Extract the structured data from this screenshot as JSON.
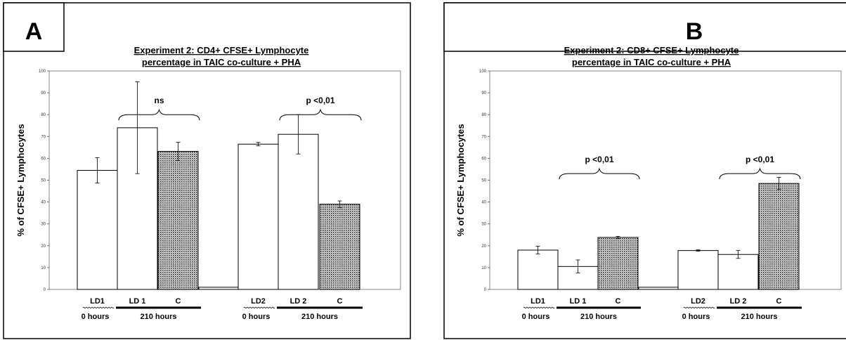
{
  "chart_data": [
    {
      "type": "bar",
      "panel_label": "A",
      "title_lines": [
        "Experiment 2: CD4+ CFSE+ Lymphocyte",
        "percentage in TAIC co-culture + PHA"
      ],
      "ylabel": "% of CFSE+ Lymphocytes",
      "ylim": [
        0,
        100
      ],
      "yticks": [
        0,
        10,
        20,
        30,
        40,
        50,
        60,
        70,
        80,
        90,
        100
      ],
      "ytick_labels": [
        "0",
        "10",
        "20",
        "30",
        "40",
        "50",
        "60",
        "70",
        "80",
        "90",
        "100"
      ],
      "bars": [
        {
          "label": "LD1",
          "value": 54.5,
          "error": 5.8,
          "fill": "white"
        },
        {
          "label": "LD 1",
          "value": 74,
          "error": 21,
          "fill": "white"
        },
        {
          "label": "C",
          "value": 63.2,
          "error": 4.2,
          "fill": "dotted"
        },
        {
          "label": "",
          "value": 1,
          "error": 0,
          "fill": "white"
        },
        {
          "label": "LD2",
          "value": 66.5,
          "error": 0.8,
          "fill": "white"
        },
        {
          "label": "LD 2",
          "value": 71,
          "error": 9,
          "fill": "white"
        },
        {
          "label": "C",
          "value": 39,
          "error": 1.5,
          "fill": "dotted"
        }
      ],
      "annotations": [
        {
          "text": "ns",
          "from_bar": 1,
          "to_bar": 2,
          "level": 80
        },
        {
          "text": "p <0,01",
          "from_bar": 5,
          "to_bar": 6,
          "level": 80
        }
      ],
      "groups": [
        {
          "text": "0 hours",
          "bars": [
            0,
            0
          ],
          "style": "wavy"
        },
        {
          "text": "210 hours",
          "bars": [
            1,
            2
          ],
          "style": "solid"
        },
        {
          "text": "0 hours",
          "bars": [
            4,
            4
          ],
          "style": "wavy"
        },
        {
          "text": "210 hours",
          "bars": [
            5,
            6
          ],
          "style": "solid"
        }
      ]
    },
    {
      "type": "bar",
      "panel_label": "B",
      "title_lines": [
        "Experiment 2: CD8+ CFSE+ Lymphocyte",
        "percentage in TAIC co-culture + PHA"
      ],
      "ylabel": "% of CFSE+ Lymphocytes",
      "ylim": [
        0,
        100
      ],
      "yticks": [
        0,
        10,
        20,
        30,
        40,
        50,
        60,
        70,
        80,
        90,
        100
      ],
      "ytick_labels": [
        "0",
        "10",
        "20",
        "30",
        "40",
        "50",
        "60",
        "70",
        "80",
        "90",
        "100"
      ],
      "bars": [
        {
          "label": "LD1",
          "value": 18,
          "error": 1.8,
          "fill": "white"
        },
        {
          "label": "LD 1",
          "value": 10.5,
          "error": 3,
          "fill": "white"
        },
        {
          "label": "C",
          "value": 23.8,
          "error": 0.5,
          "fill": "dotted"
        },
        {
          "label": "",
          "value": 1,
          "error": 0,
          "fill": "white"
        },
        {
          "label": "LD2",
          "value": 17.8,
          "error": 0.3,
          "fill": "white"
        },
        {
          "label": "LD 2",
          "value": 16,
          "error": 1.8,
          "fill": "white"
        },
        {
          "label": "C",
          "value": 48.5,
          "error": 2.8,
          "fill": "dotted"
        }
      ],
      "annotations": [
        {
          "text": "p <0,01",
          "from_bar": 1,
          "to_bar": 2,
          "level": 53
        },
        {
          "text": "p <0,01",
          "from_bar": 5,
          "to_bar": 6,
          "level": 53
        }
      ],
      "groups": [
        {
          "text": "0 hours",
          "bars": [
            0,
            0
          ],
          "style": "wavy"
        },
        {
          "text": "210 hours",
          "bars": [
            1,
            2
          ],
          "style": "solid"
        },
        {
          "text": "0 hours",
          "bars": [
            4,
            4
          ],
          "style": "wavy"
        },
        {
          "text": "210 hours",
          "bars": [
            5,
            6
          ],
          "style": "solid"
        }
      ]
    }
  ]
}
